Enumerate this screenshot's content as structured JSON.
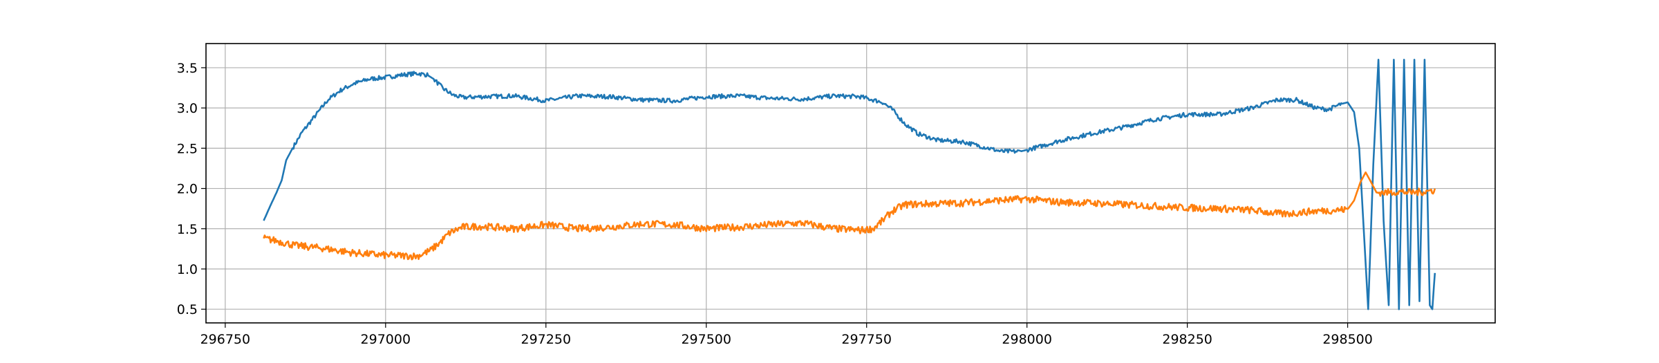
{
  "chart_data": {
    "type": "line",
    "title": "",
    "xlabel": "",
    "ylabel": "",
    "xlim": [
      296720,
      298730
    ],
    "ylim": [
      0.33,
      3.8
    ],
    "xticks": [
      296750,
      297000,
      297250,
      297500,
      297750,
      298000,
      298250,
      298500
    ],
    "xtick_labels": [
      "296750",
      "297000",
      "297250",
      "297500",
      "297750",
      "298000",
      "298250",
      "298500"
    ],
    "yticks": [
      0.5,
      1.0,
      1.5,
      2.0,
      2.5,
      3.0,
      3.5
    ],
    "ytick_labels": [
      "0.5",
      "1.0",
      "1.5",
      "2.0",
      "2.5",
      "3.0",
      "3.5"
    ],
    "grid": true,
    "legend": "none",
    "series": [
      {
        "color": "#1f77b4",
        "noise": 0.012,
        "x": [
          296810,
          296820,
          296830,
          296838,
          296845,
          296855,
          296870,
          296890,
          296910,
          296930,
          296950,
          296975,
          297000,
          297025,
          297050,
          297065,
          297075,
          297090,
          297105,
          297120,
          297150,
          297200,
          297250,
          297300,
          297350,
          297400,
          297450,
          297500,
          297550,
          297600,
          297650,
          297700,
          297740,
          297760,
          297775,
          297790,
          297810,
          297830,
          297860,
          297900,
          297930,
          297960,
          297990,
          298000,
          298020,
          298050,
          298100,
          298150,
          298200,
          298250,
          298300,
          298350,
          298390,
          298420,
          298450,
          298470,
          298490,
          298500,
          298510,
          298518,
          298525,
          298532,
          298540,
          298548,
          298556,
          298564,
          298572,
          298580,
          298588,
          298596,
          298604,
          298612,
          298620,
          298628,
          298632,
          298636
        ],
        "y": [
          1.6,
          1.78,
          1.95,
          2.1,
          2.35,
          2.5,
          2.7,
          2.9,
          3.1,
          3.22,
          3.3,
          3.36,
          3.38,
          3.41,
          3.43,
          3.41,
          3.36,
          3.24,
          3.16,
          3.13,
          3.14,
          3.15,
          3.09,
          3.15,
          3.14,
          3.1,
          3.09,
          3.14,
          3.15,
          3.12,
          3.11,
          3.15,
          3.14,
          3.1,
          3.07,
          2.98,
          2.8,
          2.68,
          2.6,
          2.58,
          2.52,
          2.46,
          2.46,
          2.48,
          2.52,
          2.59,
          2.68,
          2.76,
          2.86,
          2.92,
          2.92,
          3.0,
          3.1,
          3.1,
          3.0,
          2.98,
          3.05,
          3.07,
          2.95,
          2.5,
          1.5,
          0.5,
          2.3,
          3.6,
          1.6,
          0.55,
          3.6,
          0.5,
          3.6,
          0.55,
          3.6,
          0.6,
          3.6,
          0.55,
          0.5,
          0.95
        ]
      },
      {
        "color": "#ff7f0e",
        "noise": 0.02,
        "x": [
          296810,
          296830,
          296860,
          296900,
          296950,
          297000,
          297050,
          297070,
          297085,
          297100,
          297120,
          297150,
          297200,
          297250,
          297300,
          297350,
          297400,
          297450,
          297500,
          297550,
          297600,
          297650,
          297700,
          297740,
          297760,
          297775,
          297790,
          297810,
          297850,
          297900,
          297950,
          298000,
          298050,
          298100,
          298150,
          298200,
          298250,
          298300,
          298350,
          298400,
          298450,
          298480,
          298500,
          298510,
          298520,
          298528,
          298535,
          298545,
          298560,
          298580,
          298600,
          298620,
          298636
        ],
        "y": [
          1.38,
          1.35,
          1.29,
          1.26,
          1.2,
          1.17,
          1.16,
          1.23,
          1.33,
          1.45,
          1.52,
          1.53,
          1.5,
          1.55,
          1.5,
          1.52,
          1.56,
          1.55,
          1.5,
          1.52,
          1.55,
          1.57,
          1.5,
          1.48,
          1.5,
          1.6,
          1.72,
          1.8,
          1.81,
          1.82,
          1.85,
          1.87,
          1.83,
          1.82,
          1.8,
          1.78,
          1.76,
          1.75,
          1.73,
          1.68,
          1.72,
          1.73,
          1.74,
          1.85,
          2.08,
          2.2,
          2.1,
          1.95,
          1.95,
          1.96,
          1.95,
          1.96,
          1.98
        ]
      }
    ]
  }
}
